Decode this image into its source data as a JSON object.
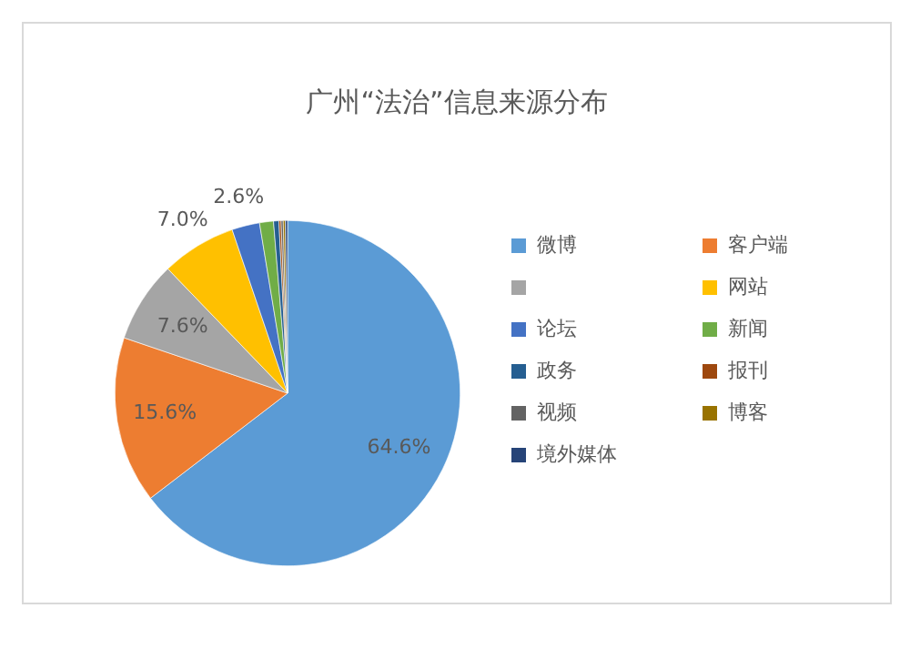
{
  "chart_data": {
    "type": "pie",
    "title": "广州“法治”信息来源分布",
    "categories": [
      "微博",
      "客户端",
      null,
      "网站",
      "论坛",
      "新闻",
      "政务",
      "报刊",
      "视频",
      "博客",
      "境外媒体"
    ],
    "values": [
      64.6,
      15.6,
      7.6,
      7.0,
      2.6,
      1.3,
      0.5,
      0.2,
      0.2,
      0.2,
      0.2
    ],
    "colors": [
      "#5b9bd5",
      "#ed7d31",
      "#a5a5a5",
      "#ffc000",
      "#4472c4",
      "#70ad47",
      "#255e91",
      "#9e480e",
      "#636363",
      "#997300",
      "#264478"
    ],
    "value_labels": [
      "64.6%",
      "15.6%",
      "7.6%",
      "7.0%",
      "2.6%",
      null,
      null,
      null,
      null,
      null,
      null
    ],
    "legend": "right"
  }
}
